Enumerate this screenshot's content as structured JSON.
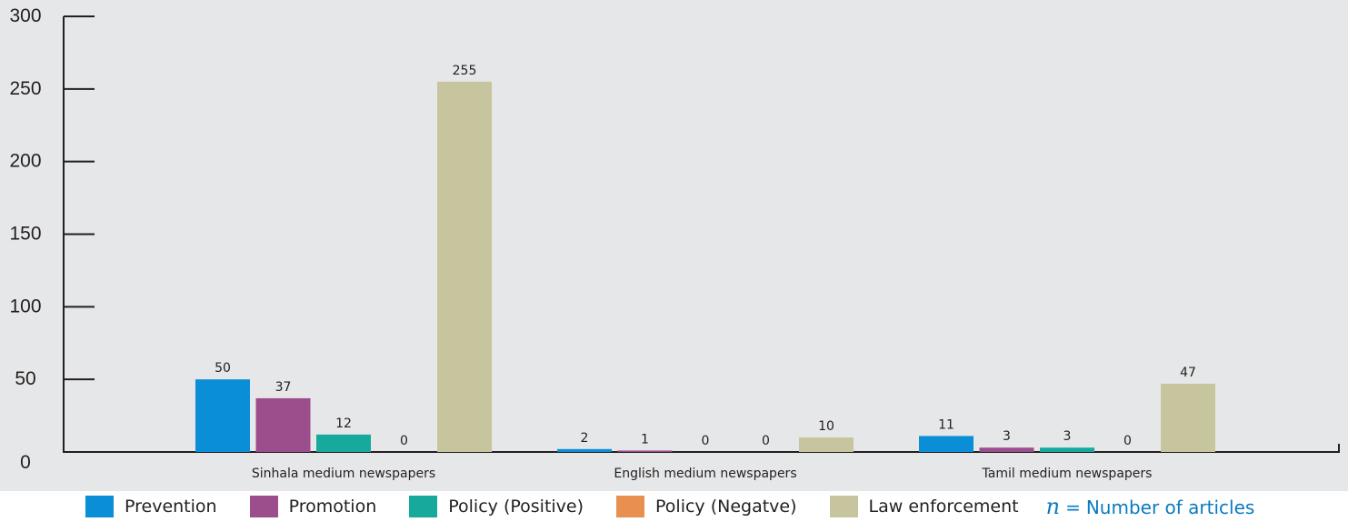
{
  "chart_data": {
    "type": "bar",
    "categories": [
      "Sinhala medium newspapers",
      "English medium newspapers",
      "Tamil medium newspapers"
    ],
    "series": [
      {
        "name": "Prevention",
        "color": "#0a8ed6",
        "values": [
          50,
          2,
          11
        ]
      },
      {
        "name": "Promotion",
        "color": "#9b4d8c",
        "values": [
          37,
          1,
          3
        ]
      },
      {
        "name": "Policy (Positive)",
        "color": "#17a99b",
        "values": [
          12,
          0,
          3
        ]
      },
      {
        "name": "Policy (Negatve)",
        "color": "#e8904f",
        "values": [
          0,
          0,
          0
        ]
      },
      {
        "name": "Law enforcement",
        "color": "#c7c59e",
        "values": [
          255,
          10,
          47
        ]
      }
    ],
    "y_ticks": [
      0,
      50,
      100,
      150,
      200,
      250,
      300
    ],
    "ylim": [
      0,
      300
    ],
    "grid": false,
    "legend_position": "bottom",
    "note": {
      "variable": "n",
      "equals": "=",
      "text": "Number of articles"
    }
  }
}
